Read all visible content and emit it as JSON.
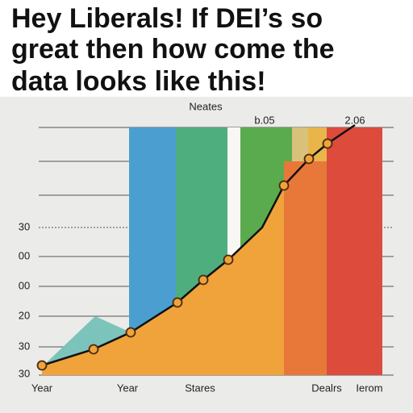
{
  "caption": {
    "lines": [
      "Hey Liberals! If DEI’s so",
      "great then how come the",
      "data looks like this!"
    ]
  },
  "chart": {
    "title": "Neates",
    "top_labels": [
      "b.05",
      "2.06"
    ],
    "y_labels": [
      "30",
      "00",
      "00",
      "20",
      "30",
      "30"
    ],
    "x_labels": [
      "Year",
      "Year",
      "Stares",
      "Dealrs",
      "Ierom"
    ]
  }
}
